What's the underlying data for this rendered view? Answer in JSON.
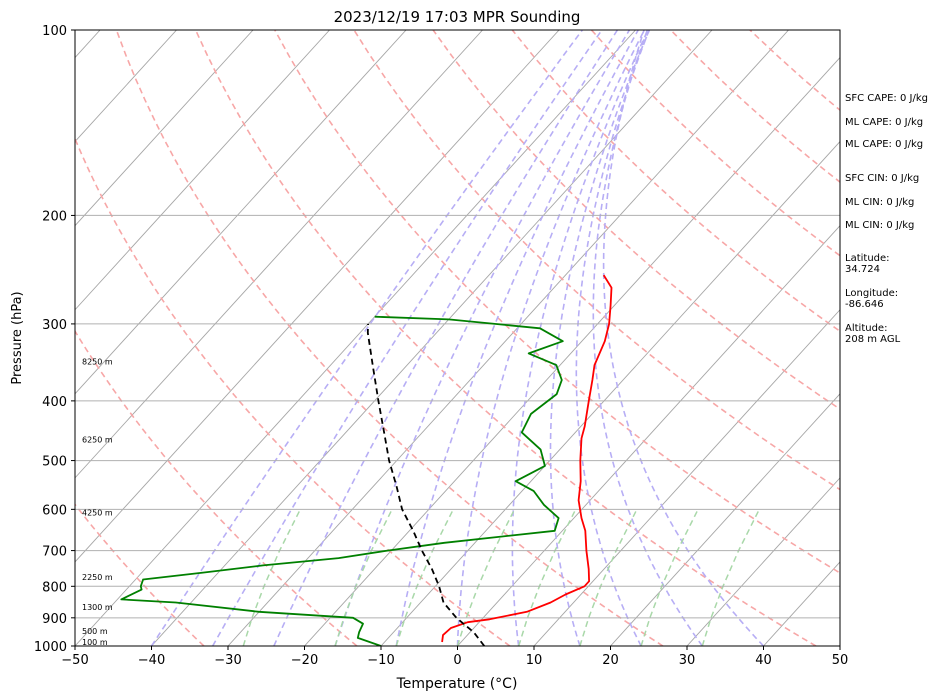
{
  "chart_data": {
    "type": "line",
    "title": "2023/12/19 17:03 MPR Sounding",
    "xlabel": "Temperature (°C)",
    "ylabel": "Pressure (hPa)",
    "xlim": [
      -50,
      50
    ],
    "ylim": [
      1000,
      100
    ],
    "y_scale": "log",
    "grid": true,
    "x_ticks": [
      "−50",
      "−40",
      "−30",
      "−20",
      "−10",
      "0",
      "10",
      "20",
      "30",
      "40",
      "50"
    ],
    "y_ticks": [
      "100",
      "200",
      "300",
      "400",
      "500",
      "600",
      "700",
      "800",
      "900",
      "1000"
    ],
    "height_labels": [
      "8250 m",
      "6250 m",
      "4250 m",
      "2250 m",
      "1300 m",
      "500 m",
      "100 m"
    ],
    "series": [
      {
        "color": "#ff0000",
        "values": [
          [
            985,
            -2.5
          ],
          [
            960,
            -3.2
          ],
          [
            935,
            -3.0
          ],
          [
            915,
            -1.5
          ],
          [
            905,
            1.0
          ],
          [
            880,
            5.0
          ],
          [
            850,
            7.0
          ],
          [
            825,
            8.0
          ],
          [
            800,
            9.5
          ],
          [
            785,
            9.5
          ],
          [
            750,
            8.0
          ],
          [
            700,
            5.5
          ],
          [
            650,
            3.0
          ],
          [
            620,
            1.0
          ],
          [
            580,
            -1.5
          ],
          [
            540,
            -3.5
          ],
          [
            500,
            -6.0
          ],
          [
            460,
            -8.5
          ],
          [
            440,
            -9.5
          ],
          [
            400,
            -12.0
          ],
          [
            370,
            -14.0
          ],
          [
            350,
            -15.5
          ],
          [
            320,
            -17.0
          ],
          [
            300,
            -18.5
          ],
          [
            280,
            -20.5
          ],
          [
            262,
            -22.5
          ],
          [
            250,
            -25.0
          ]
        ]
      },
      {
        "color": "#008000",
        "values": [
          [
            1000,
            -10.0
          ],
          [
            970,
            -14.0
          ],
          [
            950,
            -14.5
          ],
          [
            920,
            -15.0
          ],
          [
            900,
            -17.0
          ],
          [
            880,
            -30.0
          ],
          [
            850,
            -42.0
          ],
          [
            840,
            -49.5
          ],
          [
            810,
            -48.0
          ],
          [
            800,
            -48.5
          ],
          [
            780,
            -49.0
          ],
          [
            760,
            -42.0
          ],
          [
            740,
            -35.0
          ],
          [
            720,
            -26.0
          ],
          [
            700,
            -20.5
          ],
          [
            680,
            -14.0
          ],
          [
            650,
            -1.0
          ],
          [
            620,
            -2.0
          ],
          [
            590,
            -5.5
          ],
          [
            560,
            -8.5
          ],
          [
            540,
            -12.0
          ],
          [
            510,
            -10.0
          ],
          [
            480,
            -12.5
          ],
          [
            450,
            -17.0
          ],
          [
            420,
            -18.0
          ],
          [
            390,
            -17.0
          ],
          [
            370,
            -18.0
          ],
          [
            350,
            -20.5
          ],
          [
            335,
            -25.5
          ],
          [
            320,
            -22.5
          ],
          [
            305,
            -27.0
          ],
          [
            295,
            -40.0
          ],
          [
            292,
            -50.0
          ]
        ]
      },
      {
        "color": "#000000",
        "style": "dashed",
        "values": [
          [
            1000,
            3.5
          ],
          [
            950,
            0.5
          ],
          [
            900,
            -3.5
          ],
          [
            850,
            -7.0
          ],
          [
            800,
            -9.5
          ],
          [
            750,
            -12.5
          ],
          [
            700,
            -16.0
          ],
          [
            650,
            -19.5
          ],
          [
            600,
            -23.5
          ],
          [
            550,
            -27.0
          ],
          [
            500,
            -31.0
          ],
          [
            450,
            -35.0
          ],
          [
            400,
            -39.5
          ],
          [
            350,
            -44.5
          ],
          [
            310,
            -49.0
          ],
          [
            300,
            -50.0
          ]
        ]
      }
    ],
    "annotations": [
      "SFC CAPE: 0 J/kg",
      "ML CAPE: 0 J/kg",
      "ML CAPE: 0 J/kg",
      "SFC CIN: 0 J/kg",
      "ML CIN: 0 J/kg",
      "ML CIN: 0 J/kg",
      "Latitude:\n34.724",
      "Longitude:\n-86.646",
      "Altitude:\n208 m AGL"
    ]
  }
}
